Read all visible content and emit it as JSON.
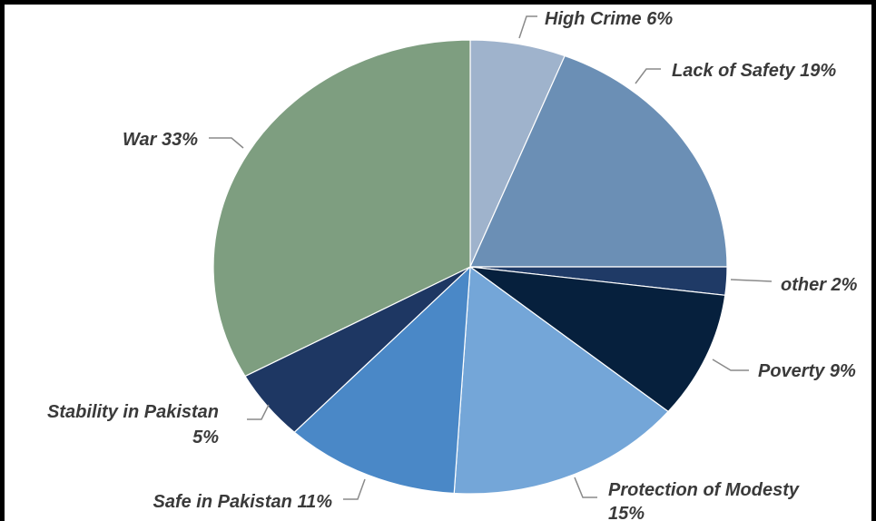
{
  "chart_data": {
    "type": "pie",
    "title": "",
    "start_angle_deg": 0,
    "direction": "clockwise",
    "slices": [
      {
        "label": "High Crime",
        "value": 6,
        "text": "High Crime 6%",
        "color": "#9fb3cc"
      },
      {
        "label": "Lack of Safety",
        "value": 19,
        "text": "Lack of Safety 19%",
        "color": "#6b8fb5"
      },
      {
        "label": "other",
        "value": 2,
        "text": "other 2%",
        "color": "#1f3a66"
      },
      {
        "label": "Poverty",
        "value": 9,
        "text": "Poverty 9%",
        "color": "#06203d"
      },
      {
        "label": "Protection of Modesty",
        "value": 15,
        "text": [
          "Protection of Modesty",
          "15%"
        ],
        "color": "#74a6d8"
      },
      {
        "label": "Safe in Pakistan",
        "value": 11,
        "text": "Safe in Pakistan 11%",
        "color": "#4a88c7"
      },
      {
        "label": "Stability in Pakistan",
        "value": 5,
        "text": [
          "Stability in Pakistan",
          "5%"
        ],
        "color": "#1e3763"
      },
      {
        "label": "War",
        "value": 33,
        "text": "War 33%",
        "color": "#7e9e80"
      }
    ]
  }
}
